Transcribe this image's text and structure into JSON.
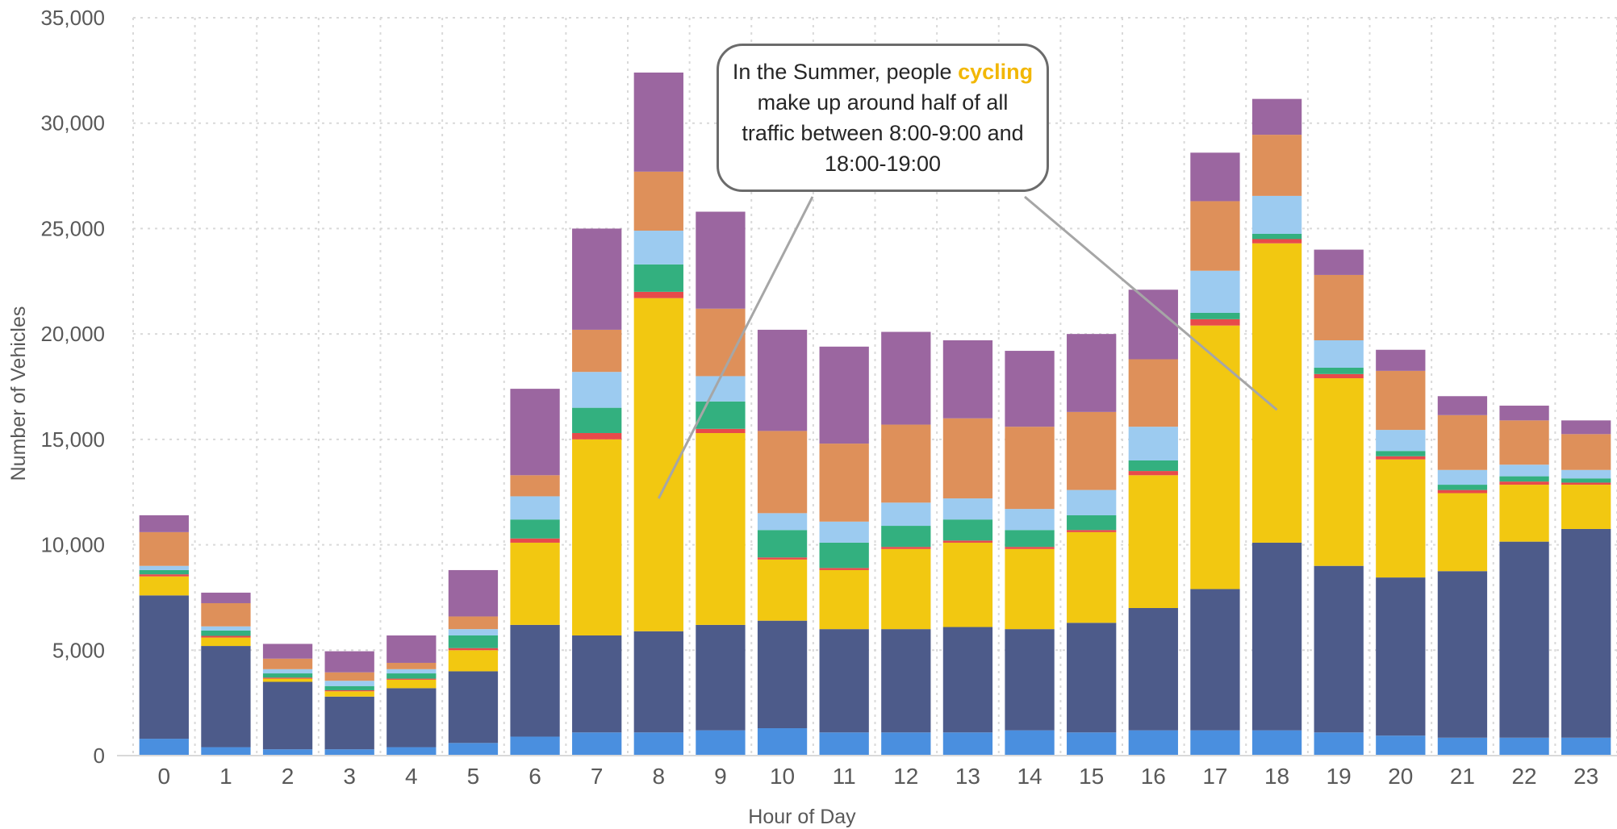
{
  "chart_data": {
    "type": "bar",
    "stacked": true,
    "xlabel": "Hour of Day",
    "ylabel": "Number of Vehicles",
    "ylim": [
      0,
      35000
    ],
    "yticks": [
      0,
      5000,
      10000,
      15000,
      20000,
      25000,
      30000,
      35000
    ],
    "ytick_labels": [
      "0",
      "5,000",
      "10,000",
      "15,000",
      "20,000",
      "25,000",
      "30,000",
      "35,000"
    ],
    "grid": true,
    "categories": [
      "0",
      "1",
      "2",
      "3",
      "4",
      "5",
      "6",
      "7",
      "8",
      "9",
      "10",
      "11",
      "12",
      "13",
      "14",
      "15",
      "16",
      "17",
      "18",
      "19",
      "20",
      "21",
      "22",
      "23"
    ],
    "series": [
      {
        "color": "#4a8fdf",
        "values": [
          800,
          400,
          300,
          300,
          400,
          600,
          900,
          1100,
          1100,
          1200,
          1300,
          1100,
          1100,
          1100,
          1200,
          1100,
          1200,
          1200,
          1200,
          1100,
          950,
          850,
          850,
          850
        ]
      },
      {
        "color": "#4d5b8a",
        "values": [
          6800,
          4800,
          3200,
          2500,
          2800,
          3400,
          5300,
          4600,
          4800,
          5000,
          5100,
          4900,
          4900,
          5000,
          4800,
          5200,
          5800,
          6700,
          8900,
          7900,
          7500,
          7900,
          9300,
          9900
        ]
      },
      {
        "color": "#f2c811",
        "values": [
          900,
          400,
          150,
          250,
          400,
          1000,
          3900,
          9300,
          15800,
          9100,
          2900,
          2800,
          3800,
          4000,
          3800,
          4300,
          6300,
          12500,
          14200,
          8900,
          5600,
          3700,
          2700,
          2100
        ]
      },
      {
        "color": "#e84a4a",
        "values": [
          100,
          80,
          50,
          50,
          50,
          100,
          200,
          300,
          300,
          200,
          100,
          100,
          100,
          100,
          100,
          100,
          200,
          300,
          200,
          200,
          150,
          150,
          150,
          100
        ]
      },
      {
        "color": "#33b07f",
        "values": [
          200,
          250,
          200,
          200,
          250,
          600,
          900,
          1200,
          1300,
          1300,
          1300,
          1200,
          1000,
          1000,
          800,
          700,
          500,
          300,
          250,
          300,
          250,
          250,
          250,
          200
        ]
      },
      {
        "color": "#9ccbf0",
        "values": [
          200,
          200,
          200,
          250,
          200,
          300,
          1100,
          1700,
          1600,
          1200,
          800,
          1000,
          1100,
          1000,
          1000,
          1200,
          1600,
          2000,
          1800,
          1300,
          1000,
          700,
          550,
          400
        ]
      },
      {
        "color": "#de905a",
        "values": [
          1600,
          1100,
          500,
          400,
          300,
          600,
          1000,
          2000,
          2800,
          3200,
          3900,
          3700,
          3700,
          3800,
          3900,
          3700,
          3200,
          3300,
          2900,
          3100,
          2800,
          2600,
          2100,
          1700
        ]
      },
      {
        "color": "#9b66a0",
        "values": [
          800,
          500,
          700,
          1000,
          1300,
          2200,
          4100,
          4800,
          4700,
          4600,
          4800,
          4600,
          4400,
          3700,
          3600,
          3700,
          3300,
          2300,
          1700,
          1200,
          1000,
          900,
          700,
          650
        ]
      }
    ],
    "annotations": [
      {
        "segments": [
          {
            "text": "In the Summer, people ",
            "highlight": false
          },
          {
            "text": "cycling",
            "highlight": true
          },
          {
            "text": " make up around half of all traffic between 8:00-9:00 and 18:00-19:00",
            "highlight": false
          }
        ],
        "highlight_color": "#f2b705",
        "points_to": [
          "8",
          "18"
        ]
      }
    ]
  }
}
